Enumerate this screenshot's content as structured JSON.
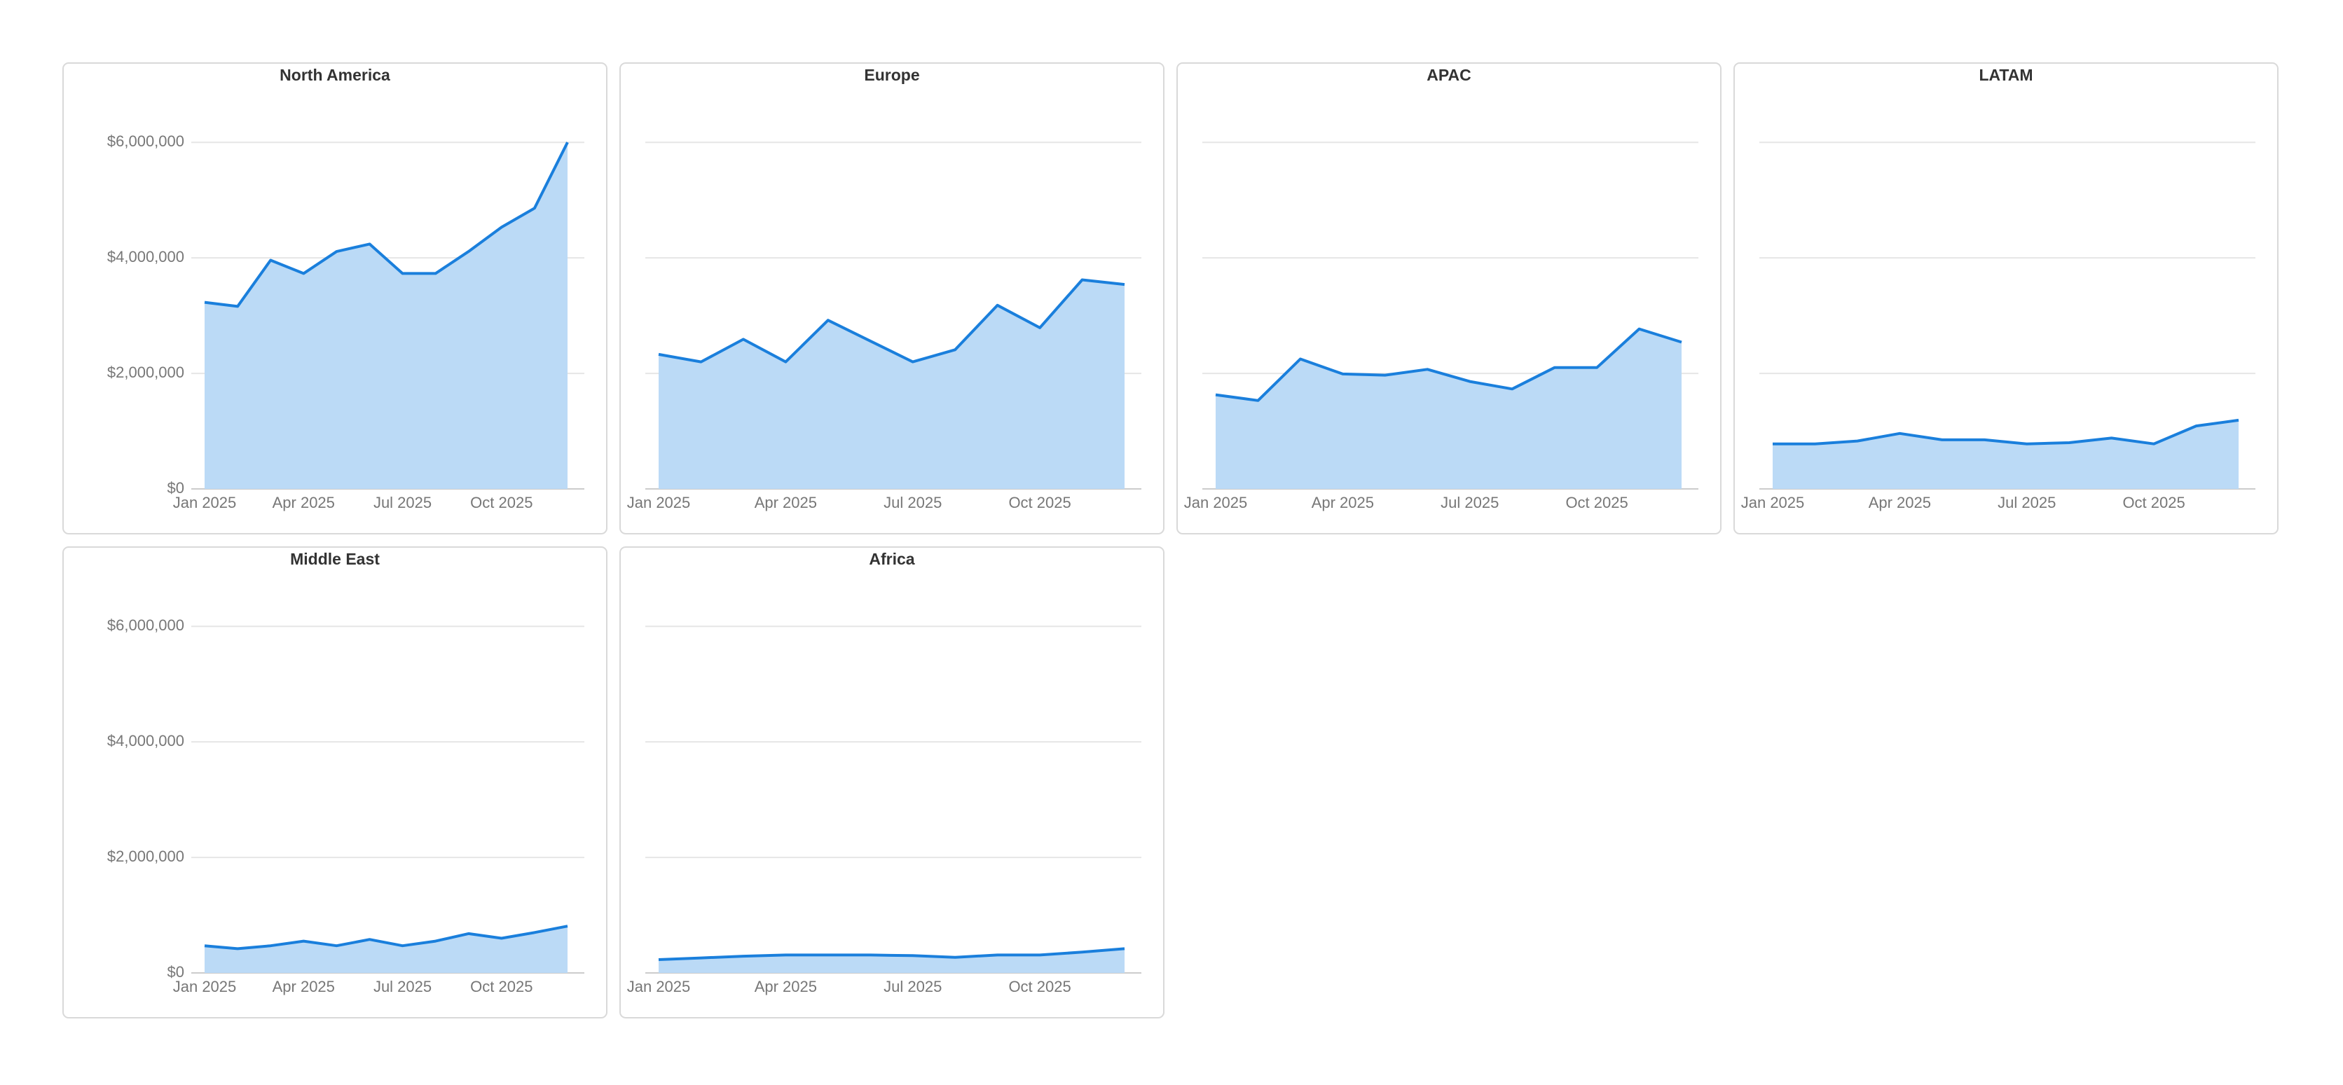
{
  "chart_data": [
    {
      "type": "area",
      "title": "North America",
      "x": [
        "2025-01",
        "2025-02",
        "2025-03",
        "2025-04",
        "2025-05",
        "2025-06",
        "2025-07",
        "2025-08",
        "2025-09",
        "2025-10",
        "2025-11",
        "2025-12"
      ],
      "values": [
        3230000,
        3160000,
        3960000,
        3730000,
        4110000,
        4240000,
        3730000,
        3730000,
        4110000,
        4530000,
        4860000,
        6000000
      ],
      "xticks": [
        {
          "value": "2025-01",
          "label": "Jan 2025"
        },
        {
          "value": "2025-04",
          "label": "Apr 2025"
        },
        {
          "value": "2025-07",
          "label": "Jul 2025"
        },
        {
          "value": "2025-10",
          "label": "Oct 2025"
        }
      ],
      "ylim": [
        0,
        6500000
      ],
      "yticks": [
        {
          "value": 0,
          "label": "$0"
        },
        {
          "value": 2000000,
          "label": "$2,000,000"
        },
        {
          "value": 4000000,
          "label": "$4,000,000"
        },
        {
          "value": 6000000,
          "label": "$6,000,000"
        }
      ],
      "grid": true,
      "color": "#1a7fdc",
      "area_color": "#bbdaf6"
    },
    {
      "type": "area",
      "title": "Europe",
      "x": [
        "2025-01",
        "2025-02",
        "2025-03",
        "2025-04",
        "2025-05",
        "2025-06",
        "2025-07",
        "2025-08",
        "2025-09",
        "2025-10",
        "2025-11",
        "2025-12"
      ],
      "values": [
        2330000,
        2200000,
        2590000,
        2200000,
        2920000,
        2560000,
        2200000,
        2410000,
        3180000,
        2790000,
        3620000,
        3540000
      ],
      "xticks": [
        {
          "value": "2025-01",
          "label": "Jan 2025"
        },
        {
          "value": "2025-04",
          "label": "Apr 2025"
        },
        {
          "value": "2025-07",
          "label": "Jul 2025"
        },
        {
          "value": "2025-10",
          "label": "Oct 2025"
        }
      ],
      "ylim": [
        0,
        6500000
      ],
      "yticks": [
        0,
        2000000,
        4000000,
        6000000
      ],
      "grid": true,
      "color": "#1a7fdc",
      "area_color": "#bbdaf6"
    },
    {
      "type": "area",
      "title": "APAC",
      "x": [
        "2025-01",
        "2025-02",
        "2025-03",
        "2025-04",
        "2025-05",
        "2025-06",
        "2025-07",
        "2025-08",
        "2025-09",
        "2025-10",
        "2025-11",
        "2025-12"
      ],
      "values": [
        1630000,
        1530000,
        2250000,
        1990000,
        1970000,
        2070000,
        1860000,
        1730000,
        2100000,
        2100000,
        2770000,
        2540000
      ],
      "xticks": [
        {
          "value": "2025-01",
          "label": "Jan 2025"
        },
        {
          "value": "2025-04",
          "label": "Apr 2025"
        },
        {
          "value": "2025-07",
          "label": "Jul 2025"
        },
        {
          "value": "2025-10",
          "label": "Oct 2025"
        }
      ],
      "ylim": [
        0,
        6500000
      ],
      "yticks": [
        0,
        2000000,
        4000000,
        6000000
      ],
      "grid": true,
      "color": "#1a7fdc",
      "area_color": "#bbdaf6"
    },
    {
      "type": "area",
      "title": "LATAM",
      "x": [
        "2025-01",
        "2025-02",
        "2025-03",
        "2025-04",
        "2025-05",
        "2025-06",
        "2025-07",
        "2025-08",
        "2025-09",
        "2025-10",
        "2025-11",
        "2025-12"
      ],
      "values": [
        780000,
        780000,
        830000,
        960000,
        850000,
        850000,
        780000,
        800000,
        880000,
        780000,
        1090000,
        1190000
      ],
      "xticks": [
        {
          "value": "2025-01",
          "label": "Jan 2025"
        },
        {
          "value": "2025-04",
          "label": "Apr 2025"
        },
        {
          "value": "2025-07",
          "label": "Jul 2025"
        },
        {
          "value": "2025-10",
          "label": "Oct 2025"
        }
      ],
      "ylim": [
        0,
        6500000
      ],
      "yticks": [
        0,
        2000000,
        4000000,
        6000000
      ],
      "grid": true,
      "color": "#1a7fdc",
      "area_color": "#bbdaf6"
    },
    {
      "type": "area",
      "title": "Middle East",
      "x": [
        "2025-01",
        "2025-02",
        "2025-03",
        "2025-04",
        "2025-05",
        "2025-06",
        "2025-07",
        "2025-08",
        "2025-09",
        "2025-10",
        "2025-11",
        "2025-12"
      ],
      "values": [
        470000,
        420000,
        470000,
        550000,
        470000,
        580000,
        470000,
        550000,
        680000,
        600000,
        700000,
        810000
      ],
      "xticks": [
        {
          "value": "2025-01",
          "label": "Jan 2025"
        },
        {
          "value": "2025-04",
          "label": "Apr 2025"
        },
        {
          "value": "2025-07",
          "label": "Jul 2025"
        },
        {
          "value": "2025-10",
          "label": "Oct 2025"
        }
      ],
      "ylim": [
        0,
        6500000
      ],
      "yticks": [
        {
          "value": 0,
          "label": "$0"
        },
        {
          "value": 2000000,
          "label": "$2,000,000"
        },
        {
          "value": 4000000,
          "label": "$4,000,000"
        },
        {
          "value": 6000000,
          "label": "$6,000,000"
        }
      ],
      "grid": true,
      "color": "#1a7fdc",
      "area_color": "#bbdaf6"
    },
    {
      "type": "area",
      "title": "Africa",
      "x": [
        "2025-01",
        "2025-02",
        "2025-03",
        "2025-04",
        "2025-05",
        "2025-06",
        "2025-07",
        "2025-08",
        "2025-09",
        "2025-10",
        "2025-11",
        "2025-12"
      ],
      "values": [
        230000,
        260000,
        290000,
        310000,
        310000,
        310000,
        300000,
        270000,
        310000,
        310000,
        360000,
        420000
      ],
      "xticks": [
        {
          "value": "2025-01",
          "label": "Jan 2025"
        },
        {
          "value": "2025-04",
          "label": "Apr 2025"
        },
        {
          "value": "2025-07",
          "label": "Jul 2025"
        },
        {
          "value": "2025-10",
          "label": "Oct 2025"
        }
      ],
      "ylim": [
        0,
        6500000
      ],
      "yticks": [
        0,
        2000000,
        4000000,
        6000000
      ],
      "grid": true,
      "color": "#1a7fdc",
      "area_color": "#bbdaf6"
    }
  ]
}
